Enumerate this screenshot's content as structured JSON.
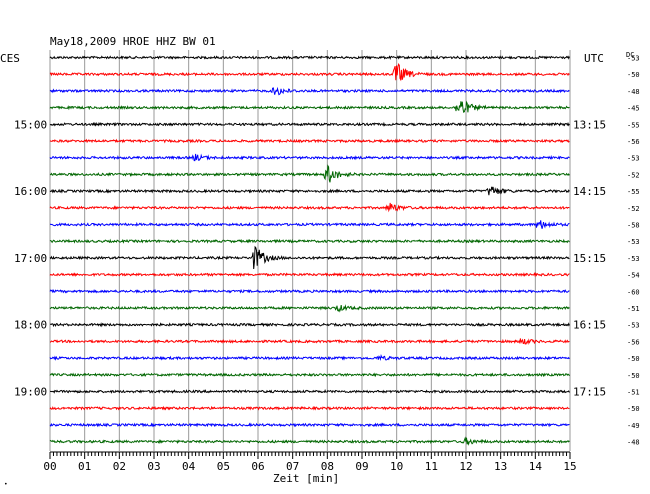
{
  "chart_data": {
    "type": "line",
    "title": "May18,2009   HROE HHZ BW 01",
    "xlabel": "Zeit [min]",
    "xlim": [
      0,
      15
    ],
    "x_ticks": [
      "00",
      "01",
      "02",
      "03",
      "04",
      "05",
      "06",
      "07",
      "08",
      "09",
      "10",
      "11",
      "12",
      "13",
      "14",
      "15"
    ],
    "left_zone_label": "CES",
    "right_zone_label": "UTC",
    "dc_label": "DC",
    "grid": true,
    "trace_colors": [
      "#000000",
      "#ff0000",
      "#0000ff",
      "#006600"
    ],
    "left_time_labels": [
      {
        "trace": 4,
        "label": "15:00"
      },
      {
        "trace": 8,
        "label": "16:00"
      },
      {
        "trace": 12,
        "label": "17:00"
      },
      {
        "trace": 16,
        "label": "18:00"
      },
      {
        "trace": 20,
        "label": "19:00"
      }
    ],
    "right_time_labels": [
      {
        "trace": 4,
        "label": "13:15"
      },
      {
        "trace": 8,
        "label": "14:15"
      },
      {
        "trace": 12,
        "label": "15:15"
      },
      {
        "trace": 16,
        "label": "16:15"
      },
      {
        "trace": 20,
        "label": "17:15"
      }
    ],
    "dc_values": [
      "-53",
      "-50",
      "-48",
      "-45",
      "-55",
      "-56",
      "-53",
      "-52",
      "-55",
      "-52",
      "-58",
      "-53",
      "-53",
      "-54",
      "-60",
      "-51",
      "-53",
      "-56",
      "-50",
      "-50",
      "-51",
      "-50",
      "-49",
      "-48"
    ],
    "events": [
      {
        "trace": 1,
        "minute": 10.0,
        "amplitude": 12
      },
      {
        "trace": 2,
        "minute": 6.5,
        "amplitude": 5
      },
      {
        "trace": 3,
        "minute": 11.8,
        "amplitude": 12
      },
      {
        "trace": 6,
        "minute": 4.2,
        "amplitude": 3
      },
      {
        "trace": 7,
        "minute": 8.0,
        "amplitude": 10
      },
      {
        "trace": 8,
        "minute": 12.7,
        "amplitude": 6
      },
      {
        "trace": 9,
        "minute": 9.8,
        "amplitude": 5
      },
      {
        "trace": 10,
        "minute": 14.1,
        "amplitude": 5
      },
      {
        "trace": 12,
        "minute": 5.9,
        "amplitude": 13
      },
      {
        "trace": 15,
        "minute": 8.3,
        "amplitude": 3
      },
      {
        "trace": 17,
        "minute": 13.6,
        "amplitude": 3
      },
      {
        "trace": 18,
        "minute": 9.5,
        "amplitude": 2
      },
      {
        "trace": 23,
        "minute": 12.0,
        "amplitude": 3
      }
    ]
  }
}
